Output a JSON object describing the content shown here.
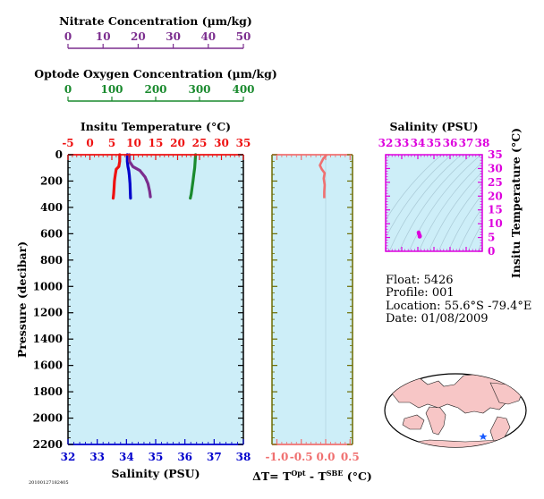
{
  "colors": {
    "nitrate": "#7b2d8e",
    "oxygen": "#1a8a2e",
    "temperature": "#ee1111",
    "salinity": "#0000cc",
    "delta": "#f07070",
    "ts": "#dd00dd",
    "panel_bg": "#cdeef8",
    "land": "#f7c6c6"
  },
  "nitrate_axis": {
    "label": "Nitrate Concentration (µm/kg)",
    "ticks": [
      "0",
      "10",
      "20",
      "30",
      "40",
      "50"
    ],
    "range": [
      0,
      50
    ]
  },
  "oxygen_axis": {
    "label": "Optode Oxygen Concentration (µm/kg)",
    "ticks": [
      "0",
      "100",
      "200",
      "300",
      "400"
    ],
    "range": [
      0,
      400
    ]
  },
  "temp_axis": {
    "label": "Insitu Temperature (°C)",
    "ticks": [
      "-5",
      "0",
      "5",
      "10",
      "15",
      "20",
      "25",
      "30",
      "35"
    ],
    "range": [
      -5,
      35
    ]
  },
  "sal_axis": {
    "label": "Salinity (PSU)",
    "ticks": [
      "32",
      "33",
      "34",
      "35",
      "36",
      "37",
      "38"
    ],
    "range": [
      32,
      38
    ]
  },
  "pressure_axis": {
    "label": "Pressure (decibar)",
    "ticks": [
      "0",
      "200",
      "400",
      "600",
      "800",
      "1000",
      "1200",
      "1400",
      "1600",
      "1800",
      "2000",
      "2200"
    ],
    "range": [
      0,
      2200
    ]
  },
  "delta_axis": {
    "label_parts": [
      "ΔT= T",
      "Opt",
      " - T",
      "SBE",
      " (°C)"
    ],
    "ticks": [
      "-1.0",
      "-0.5",
      "0.0",
      "0.5"
    ],
    "range": [
      -1.1,
      0.55
    ]
  },
  "ts_axes": {
    "top_label": "Salinity (PSU)",
    "top_ticks": [
      "32",
      "33",
      "34",
      "35",
      "36",
      "37",
      "38"
    ],
    "right_label": "Insitu Temperature (°C)",
    "right_ticks": [
      "0",
      "5",
      "10",
      "15",
      "20",
      "25",
      "30",
      "35"
    ]
  },
  "info": {
    "float": "Float:  5426",
    "profile": "Profile:  001",
    "location": "Location:  55.6°S  -79.4°E",
    "date": "Date:  01/08/2009"
  },
  "footer_text": "20100127182405",
  "chart_data": [
    {
      "type": "line",
      "title": "",
      "xlabel": "Insitu Temperature (°C)",
      "ylabel": "Pressure (decibar)",
      "xlim": [
        -5,
        35
      ],
      "ylim": [
        2200,
        0
      ],
      "grid": false,
      "series": [
        {
          "name": "Insitu Temperature",
          "axis": "temperature",
          "x": [
            6.8,
            6.8,
            6.6,
            6.0,
            5.8,
            5.6,
            5.5,
            5.4,
            5.3
          ],
          "y": [
            0,
            50,
            90,
            110,
            150,
            200,
            250,
            300,
            330
          ]
        }
      ]
    },
    {
      "type": "line",
      "xlabel": "Salinity (PSU)",
      "xlim": [
        32,
        38
      ],
      "series": [
        {
          "name": "Salinity",
          "axis": "salinity",
          "x": [
            34.03,
            34.03,
            34.05,
            34.08,
            34.1,
            34.12,
            34.13,
            34.14
          ],
          "y": [
            0,
            50,
            90,
            120,
            160,
            220,
            280,
            330
          ]
        }
      ]
    },
    {
      "type": "line",
      "xlabel": "Nitrate Concentration (µm/kg)",
      "xlim": [
        0,
        50
      ],
      "series": [
        {
          "name": "Nitrate",
          "axis": "nitrate",
          "x": [
            17.5,
            17.5,
            18.5,
            20.5,
            22,
            22.8,
            23.3,
            23.5
          ],
          "y": [
            0,
            50,
            90,
            120,
            170,
            220,
            280,
            320
          ]
        }
      ]
    },
    {
      "type": "line",
      "xlabel": "Optode Oxygen Concentration (µm/kg)",
      "xlim": [
        0,
        400
      ],
      "series": [
        {
          "name": "Optode Oxygen",
          "axis": "oxygen",
          "x": [
            291,
            290,
            289,
            287,
            285,
            283,
            281,
            279
          ],
          "y": [
            0,
            50,
            100,
            150,
            200,
            250,
            300,
            330
          ]
        }
      ]
    },
    {
      "type": "line",
      "xlabel": "ΔT= TOpt - TSBE (°C)",
      "xlim": [
        -1.1,
        0.55
      ],
      "series": [
        {
          "name": "ΔT",
          "x": [
            0.02,
            -0.05,
            -0.12,
            -0.08,
            -0.02,
            -0.04,
            -0.02,
            -0.03,
            -0.03
          ],
          "y": [
            0,
            30,
            80,
            110,
            140,
            180,
            230,
            280,
            330
          ]
        }
      ]
    },
    {
      "type": "scatter",
      "xlabel": "Salinity (PSU)",
      "ylabel": "Insitu Temperature (°C)",
      "xlim": [
        32,
        38
      ],
      "ylim": [
        0,
        35
      ],
      "series": [
        {
          "name": "T-S",
          "x": [
            34.05,
            34.07,
            34.1,
            34.12,
            34.13,
            34.11
          ],
          "y": [
            6.8,
            6.4,
            5.9,
            5.6,
            5.4,
            5.3
          ]
        }
      ]
    }
  ]
}
